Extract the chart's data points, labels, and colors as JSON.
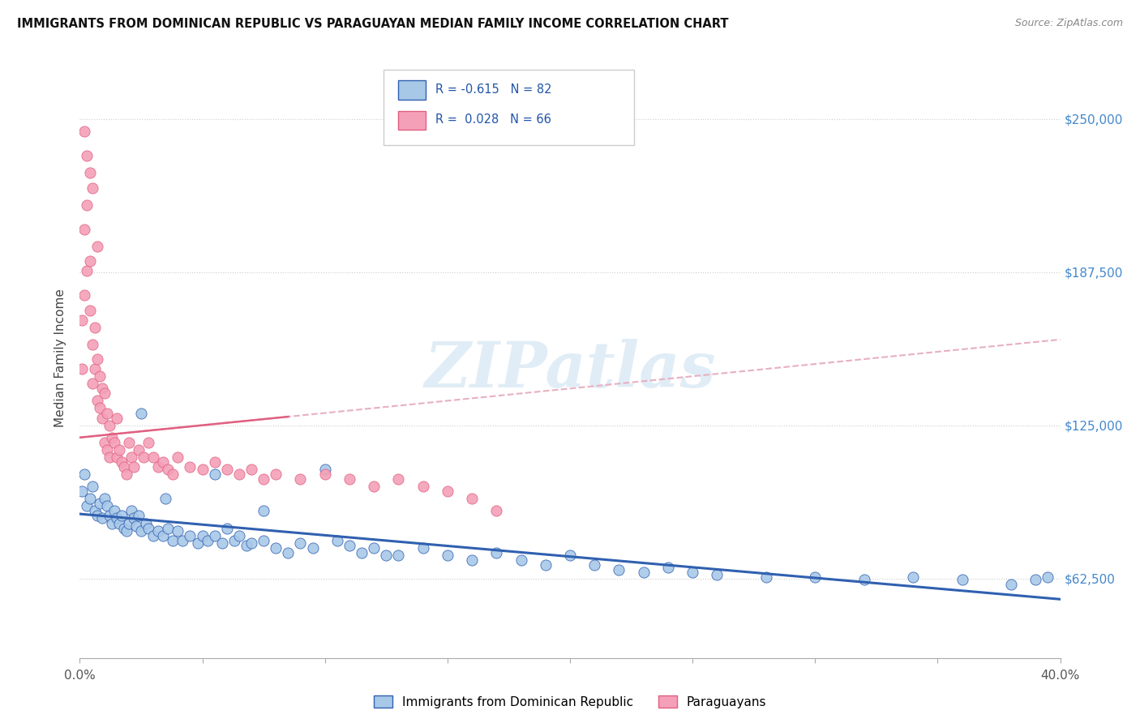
{
  "title": "IMMIGRANTS FROM DOMINICAN REPUBLIC VS PARAGUAYAN MEDIAN FAMILY INCOME CORRELATION CHART",
  "source": "Source: ZipAtlas.com",
  "ylabel": "Median Family Income",
  "yticks": [
    62500,
    125000,
    187500,
    250000
  ],
  "ytick_labels": [
    "$62,500",
    "$125,000",
    "$187,500",
    "$250,000"
  ],
  "xlim": [
    0.0,
    0.4
  ],
  "ylim": [
    30000,
    275000
  ],
  "blue_R": "-0.615",
  "blue_N": "82",
  "pink_R": "0.028",
  "pink_N": "66",
  "blue_color": "#a8c8e8",
  "pink_color": "#f4a0b8",
  "blue_line_color": "#3060b0",
  "pink_line_color": "#e06080",
  "pink_dash_color": "#e8b0c0",
  "watermark_text": "ZIPatlas",
  "legend_label_blue": "Immigrants from Dominican Republic",
  "legend_label_pink": "Paraguayans",
  "blue_scatter_x": [
    0.001,
    0.002,
    0.003,
    0.004,
    0.005,
    0.006,
    0.007,
    0.008,
    0.009,
    0.01,
    0.011,
    0.012,
    0.013,
    0.014,
    0.015,
    0.016,
    0.017,
    0.018,
    0.019,
    0.02,
    0.021,
    0.022,
    0.023,
    0.024,
    0.025,
    0.027,
    0.028,
    0.03,
    0.032,
    0.034,
    0.036,
    0.038,
    0.04,
    0.042,
    0.045,
    0.048,
    0.05,
    0.052,
    0.055,
    0.058,
    0.06,
    0.063,
    0.065,
    0.068,
    0.07,
    0.075,
    0.08,
    0.085,
    0.09,
    0.095,
    0.1,
    0.105,
    0.11,
    0.115,
    0.12,
    0.125,
    0.13,
    0.14,
    0.15,
    0.16,
    0.17,
    0.18,
    0.19,
    0.2,
    0.21,
    0.22,
    0.23,
    0.24,
    0.25,
    0.26,
    0.28,
    0.3,
    0.32,
    0.34,
    0.36,
    0.38,
    0.39,
    0.395,
    0.025,
    0.035,
    0.055,
    0.075
  ],
  "blue_scatter_y": [
    98000,
    105000,
    92000,
    95000,
    100000,
    90000,
    88000,
    93000,
    87000,
    95000,
    92000,
    88000,
    85000,
    90000,
    87000,
    85000,
    88000,
    83000,
    82000,
    85000,
    90000,
    87000,
    84000,
    88000,
    82000,
    85000,
    83000,
    80000,
    82000,
    80000,
    83000,
    78000,
    82000,
    78000,
    80000,
    77000,
    80000,
    78000,
    80000,
    77000,
    83000,
    78000,
    80000,
    76000,
    77000,
    78000,
    75000,
    73000,
    77000,
    75000,
    107000,
    78000,
    76000,
    73000,
    75000,
    72000,
    72000,
    75000,
    72000,
    70000,
    73000,
    70000,
    68000,
    72000,
    68000,
    66000,
    65000,
    67000,
    65000,
    64000,
    63000,
    63000,
    62000,
    63000,
    62000,
    60000,
    62000,
    63000,
    130000,
    95000,
    105000,
    90000
  ],
  "pink_scatter_x": [
    0.001,
    0.001,
    0.002,
    0.002,
    0.003,
    0.003,
    0.004,
    0.004,
    0.005,
    0.005,
    0.006,
    0.006,
    0.007,
    0.007,
    0.008,
    0.008,
    0.009,
    0.009,
    0.01,
    0.01,
    0.011,
    0.011,
    0.012,
    0.012,
    0.013,
    0.014,
    0.015,
    0.015,
    0.016,
    0.017,
    0.018,
    0.019,
    0.02,
    0.021,
    0.022,
    0.024,
    0.026,
    0.028,
    0.03,
    0.032,
    0.034,
    0.036,
    0.038,
    0.04,
    0.045,
    0.05,
    0.055,
    0.06,
    0.065,
    0.07,
    0.075,
    0.08,
    0.09,
    0.1,
    0.11,
    0.12,
    0.13,
    0.14,
    0.15,
    0.16,
    0.17,
    0.002,
    0.003,
    0.004,
    0.005,
    0.007
  ],
  "pink_scatter_y": [
    168000,
    148000,
    205000,
    178000,
    215000,
    188000,
    192000,
    172000,
    158000,
    142000,
    165000,
    148000,
    152000,
    135000,
    145000,
    132000,
    140000,
    128000,
    138000,
    118000,
    130000,
    115000,
    125000,
    112000,
    120000,
    118000,
    128000,
    112000,
    115000,
    110000,
    108000,
    105000,
    118000,
    112000,
    108000,
    115000,
    112000,
    118000,
    112000,
    108000,
    110000,
    107000,
    105000,
    112000,
    108000,
    107000,
    110000,
    107000,
    105000,
    107000,
    103000,
    105000,
    103000,
    105000,
    103000,
    100000,
    103000,
    100000,
    98000,
    95000,
    90000,
    245000,
    235000,
    228000,
    222000,
    198000
  ]
}
